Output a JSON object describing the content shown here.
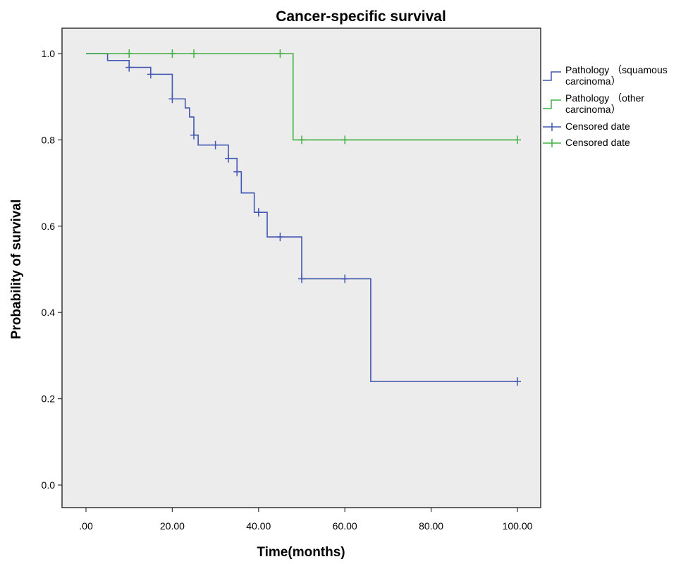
{
  "chart_data": {
    "type": "line",
    "title": "Cancer-specific survival",
    "xlabel": "Time(months)",
    "ylabel": "Probability of survival",
    "xlim": [
      0,
      100
    ],
    "ylim": [
      0,
      1
    ],
    "x_ticks": [
      0,
      20,
      40,
      60,
      80,
      100
    ],
    "x_tick_labels": [
      ".00",
      "20.00",
      "40.00",
      "60.00",
      "80.00",
      "100.00"
    ],
    "y_ticks": [
      0,
      0.2,
      0.4,
      0.6,
      0.8,
      1.0
    ],
    "y_tick_labels": [
      "0.0",
      "0.2",
      "0.4",
      "0.6",
      "0.8",
      "1.0"
    ],
    "grid": false,
    "legend_position": "right",
    "plot_background": "#ececec",
    "series": [
      {
        "name": "Pathology （squamous carcinoma）",
        "color": "#4257b2",
        "step_points": [
          [
            0,
            1.0
          ],
          [
            5,
            0.984
          ],
          [
            10,
            0.968
          ],
          [
            15,
            0.952
          ],
          [
            20,
            0.895
          ],
          [
            23,
            0.874
          ],
          [
            24,
            0.853
          ],
          [
            25,
            0.811
          ],
          [
            26,
            0.788
          ],
          [
            33,
            0.757
          ],
          [
            35,
            0.726
          ],
          [
            36,
            0.677
          ],
          [
            39,
            0.632
          ],
          [
            42,
            0.575
          ],
          [
            50,
            0.478
          ],
          [
            66,
            0.24
          ],
          [
            100,
            0.24
          ]
        ],
        "censored": [
          [
            10,
            0.968
          ],
          [
            15,
            0.952
          ],
          [
            20,
            0.895
          ],
          [
            25,
            0.811
          ],
          [
            30,
            0.788
          ],
          [
            33,
            0.757
          ],
          [
            35,
            0.726
          ],
          [
            40,
            0.632
          ],
          [
            45,
            0.575
          ],
          [
            50,
            0.478
          ],
          [
            60,
            0.478
          ],
          [
            100,
            0.24
          ]
        ]
      },
      {
        "name": "Pathology （other carcinoma）",
        "color": "#44b044",
        "step_points": [
          [
            0,
            1.0
          ],
          [
            48,
            0.8
          ],
          [
            100,
            0.8
          ]
        ],
        "censored": [
          [
            10,
            1.0
          ],
          [
            20,
            1.0
          ],
          [
            25,
            1.0
          ],
          [
            45,
            1.0
          ],
          [
            50,
            0.8
          ],
          [
            60,
            0.8
          ],
          [
            100,
            0.8
          ]
        ]
      }
    ],
    "legend": [
      {
        "lines": [
          "Pathology （squamous",
          "carcinoma）"
        ],
        "color": "#4257b2",
        "marker": "step"
      },
      {
        "lines": [
          "Pathology （other",
          "carcinoma）"
        ],
        "color": "#44b044",
        "marker": "step"
      },
      {
        "lines": [
          "Censored date"
        ],
        "color": "#4257b2",
        "marker": "cross"
      },
      {
        "lines": [
          "Censored date"
        ],
        "color": "#44b044",
        "marker": "cross"
      }
    ]
  }
}
